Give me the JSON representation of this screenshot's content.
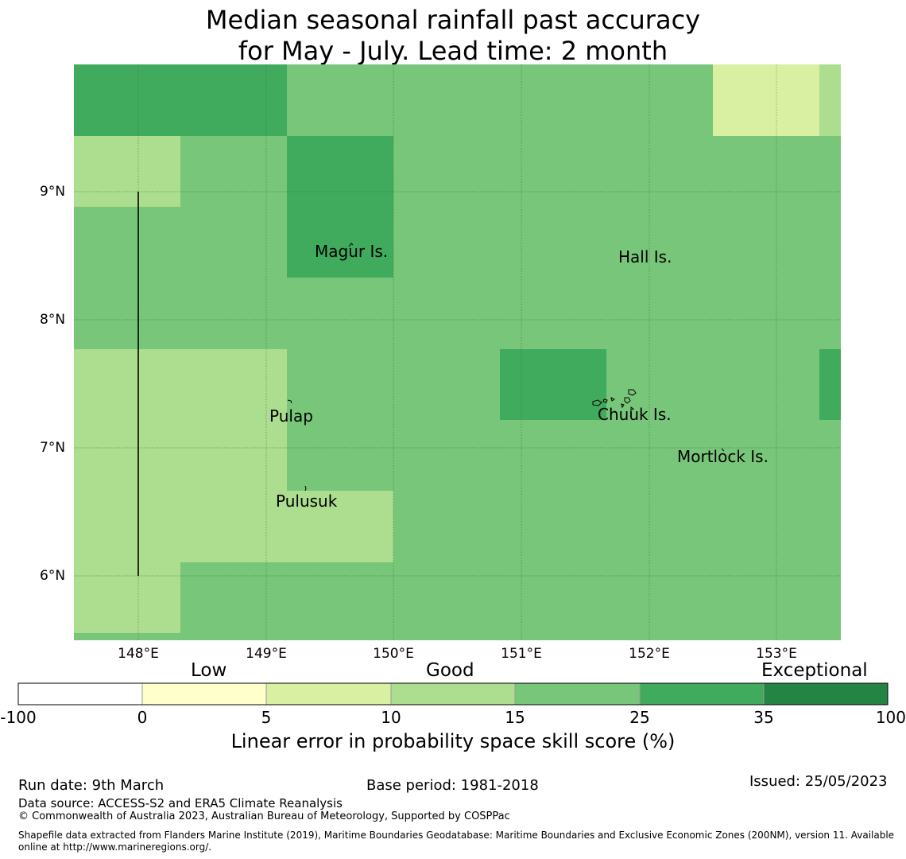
{
  "title": {
    "line1": "Median seasonal rainfall past accuracy",
    "line2": "for May - July. Lead time: 2 month"
  },
  "map": {
    "lat_labels": [
      "9°N",
      "8°N",
      "7°N",
      "6°N"
    ],
    "lon_labels": [
      "148°E",
      "149°E",
      "150°E",
      "151°E",
      "152°E",
      "153°E"
    ],
    "places": [
      "Magur Is.",
      "Hall Is.",
      "Pulap",
      "Chuuk Is.",
      "Mortlock Is.",
      "Pulusuk"
    ],
    "colors": {
      "c5_10": "#d9f0a3",
      "c10_15": "#addd8e",
      "c15_25": "#78c679",
      "c25_35": "#41ab5d"
    }
  },
  "colorbar": {
    "categories": [
      "Low",
      "Good",
      "Exceptional"
    ],
    "tick_labels": [
      "-100",
      "0",
      "5",
      "10",
      "15",
      "25",
      "35",
      "100"
    ],
    "colors": [
      "#ffffff",
      "#ffffcc",
      "#d9f0a3",
      "#addd8e",
      "#78c679",
      "#41ab5d",
      "#238443"
    ],
    "label": "Linear error in probability space skill score (%)"
  },
  "footer": {
    "run_date": "Run date: 9th March",
    "base_period": "Base period: 1981-2018",
    "issued": "Issued: 25/05/2023",
    "data_source": "Data source: ACCESS-S2 and ERA5 Climate Reanalysis",
    "copyright": "© Commonwealth of Australia 2023, Australian Bureau of Meteorology, Supported by COSPPac",
    "shapefile_line1": "Shapefile data extracted from Flanders Marine Institute (2019), Maritime Boundaries Geodatabase: Maritime Boundaries and Exclusive Economic Zones (200NM), version 11. Available",
    "shapefile_line2": "online at http://www.marineregions.org/."
  }
}
